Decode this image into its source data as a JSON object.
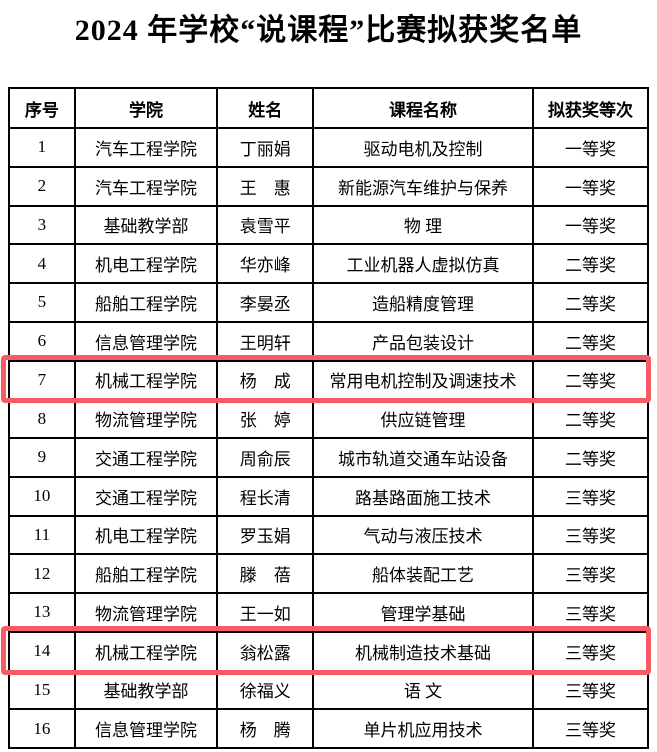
{
  "title": "2024 年学校“说课程”比赛拟获奖名单",
  "colors": {
    "highlight_border": "#f65b66",
    "table_border": "#000000",
    "text": "#000000",
    "background": "#ffffff"
  },
  "table": {
    "headers": [
      "序号",
      "学院",
      "姓名",
      "课程名称",
      "拟获奖等次"
    ],
    "rows": [
      [
        "1",
        "汽车工程学院",
        "丁丽娟",
        "驱动电机及控制",
        "一等奖"
      ],
      [
        "2",
        "汽车工程学院",
        "王　惠",
        "新能源汽车维护与保养",
        "一等奖"
      ],
      [
        "3",
        "基础教学部",
        "袁雪平",
        "物 理",
        "一等奖"
      ],
      [
        "4",
        "机电工程学院",
        "华亦峰",
        "工业机器人虚拟仿真",
        "二等奖"
      ],
      [
        "5",
        "船舶工程学院",
        "李晏丞",
        "造船精度管理",
        "二等奖"
      ],
      [
        "6",
        "信息管理学院",
        "王明轩",
        "产品包装设计",
        "二等奖"
      ],
      [
        "7",
        "机械工程学院",
        "杨　成",
        "常用电机控制及调速技术",
        "二等奖"
      ],
      [
        "8",
        "物流管理学院",
        "张　婷",
        "供应链管理",
        "二等奖"
      ],
      [
        "9",
        "交通工程学院",
        "周俞辰",
        "城市轨道交通车站设备",
        "二等奖"
      ],
      [
        "10",
        "交通工程学院",
        "程长清",
        "路基路面施工技术",
        "三等奖"
      ],
      [
        "11",
        "机电工程学院",
        "罗玉娟",
        "气动与液压技术",
        "三等奖"
      ],
      [
        "12",
        "船舶工程学院",
        "滕　蓓",
        "船体装配工艺",
        "三等奖"
      ],
      [
        "13",
        "物流管理学院",
        "王一如",
        "管理学基础",
        "三等奖"
      ],
      [
        "14",
        "机械工程学院",
        "翁松露",
        "机械制造技术基础",
        "三等奖"
      ],
      [
        "15",
        "基础教学部",
        "徐福义",
        "语 文",
        "三等奖"
      ],
      [
        "16",
        "信息管理学院",
        "杨　腾",
        "单片机应用技术",
        "三等奖"
      ]
    ],
    "highlighted_rows": [
      7,
      14
    ]
  }
}
